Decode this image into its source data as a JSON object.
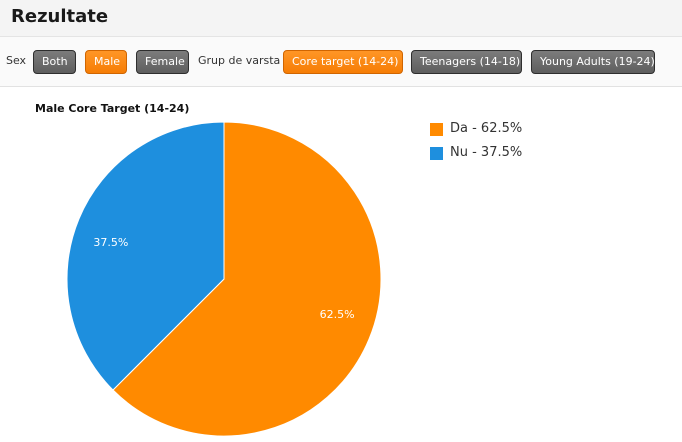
{
  "header": {
    "title": "Rezultate"
  },
  "filters": {
    "sex_label": "Sex",
    "sex_buttons": [
      {
        "label": "Both",
        "active": false
      },
      {
        "label": "Male",
        "active": true
      },
      {
        "label": "Female",
        "active": false
      }
    ],
    "age_label": "Grup de varsta",
    "age_buttons": [
      {
        "label": "Core target (14-24)",
        "active": true
      },
      {
        "label": "Teenagers (14-18)",
        "active": false
      },
      {
        "label": "Young Adults (19-24)",
        "active": false
      }
    ]
  },
  "colors": {
    "da": "#ff8a00",
    "nu": "#1e8fde",
    "active_button": "#f98a12",
    "inactive_button": "#6b6b6b"
  },
  "chart_data": {
    "type": "pie",
    "title": "Male Core Target (14-24)",
    "legend_position": "right",
    "slices": [
      {
        "label": "Da",
        "value": 62.5,
        "display": "62.5%",
        "legend": "Da - 62.5%",
        "color": "#ff8a00"
      },
      {
        "label": "Nu",
        "value": 37.5,
        "display": "37.5%",
        "legend": "Nu - 37.5%",
        "color": "#1e8fde"
      }
    ]
  }
}
